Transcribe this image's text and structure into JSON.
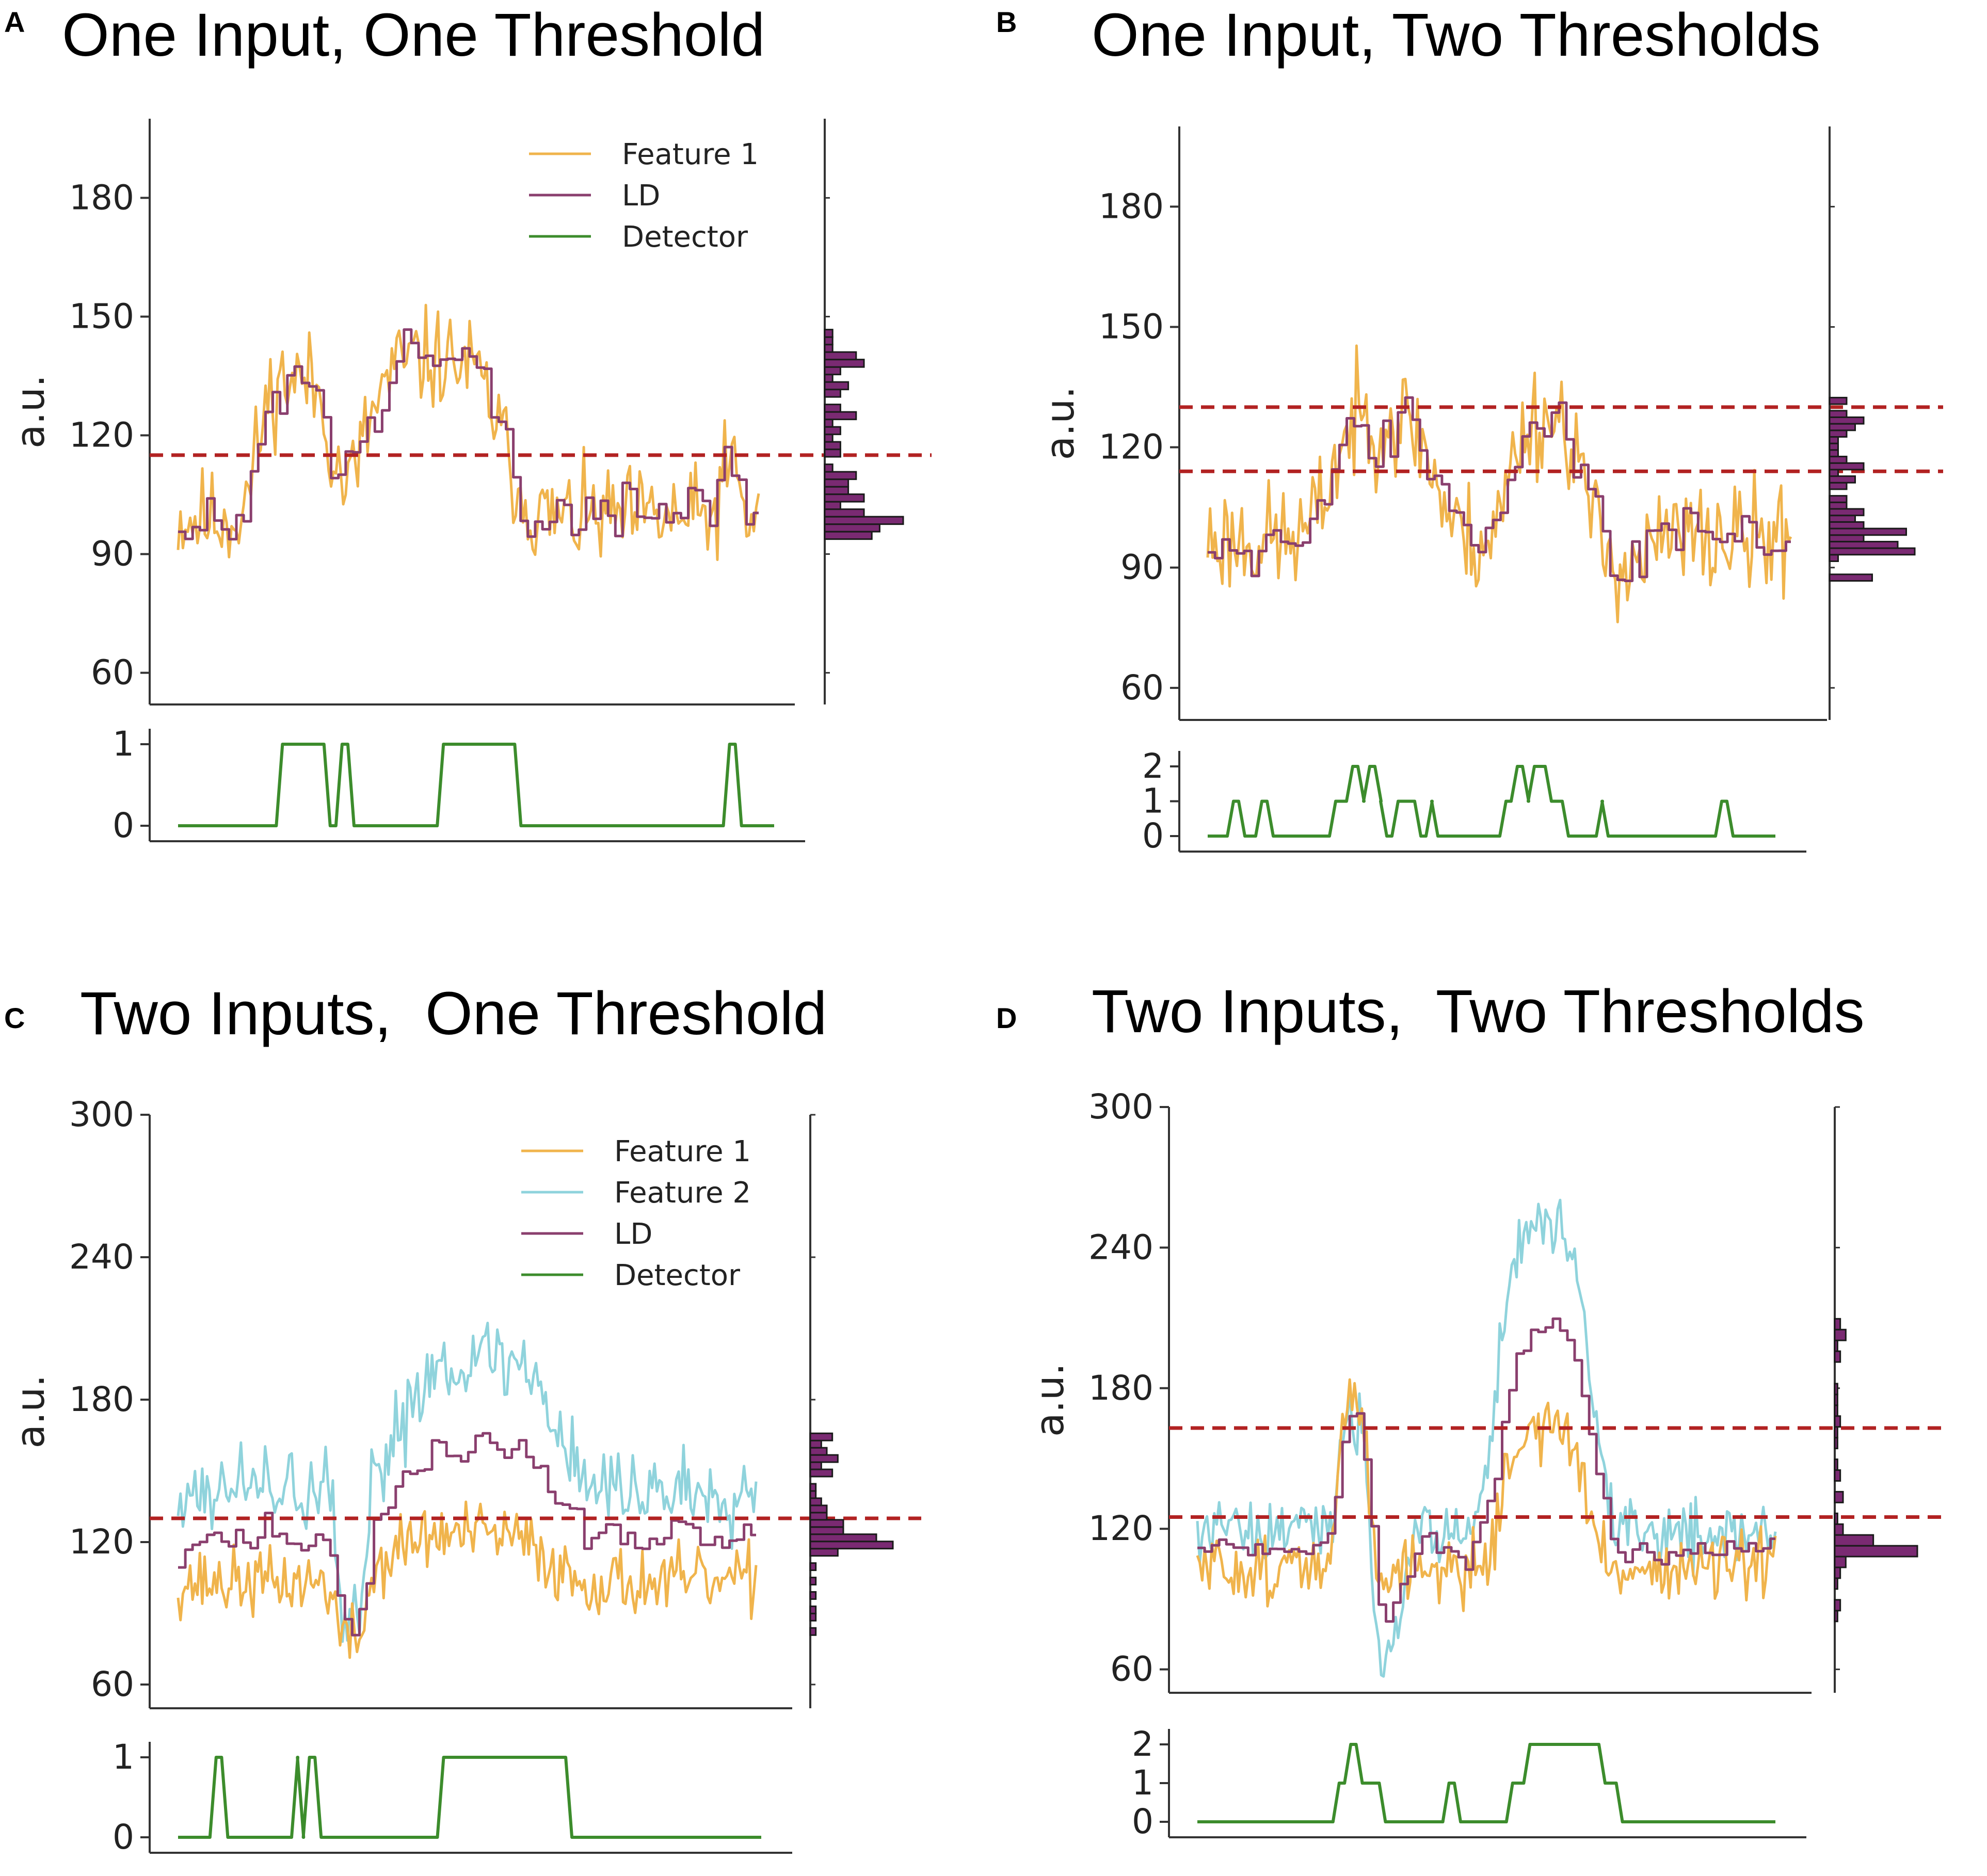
{
  "colors": {
    "feature1": "#f0b44c",
    "feature2": "#8fd3dc",
    "ld": "#8a3f6e",
    "detector": "#3c8c2c",
    "threshold": "#b22222",
    "hist_fill": "#7a2a72",
    "hist_edge": "#1a1a1a",
    "axis": "#333333"
  },
  "chart_data": [
    {
      "type": "line",
      "panel": "A",
      "title": "One Input, One Threshold",
      "ylabel": "a.u.",
      "yticks": [
        "60",
        "90",
        "120",
        "150",
        "180"
      ],
      "ylim": [
        52,
        200
      ],
      "legend": [
        "Feature 1",
        "LD",
        "Detector"
      ],
      "thresholds": [
        115
      ],
      "detector_ylim": [
        0,
        1
      ],
      "detector_ticks": [
        "0",
        "1"
      ],
      "seed": 11,
      "base": 99,
      "noise": 9,
      "bumps": [
        {
          "x": 0.2,
          "w": 0.07,
          "h": 35
        },
        {
          "x": 0.44,
          "w": 0.13,
          "h": 40
        },
        {
          "x": 0.95,
          "w": 0.02,
          "h": 12
        }
      ],
      "detector_steps": [
        [
          0,
          0
        ],
        [
          0.17,
          1
        ],
        [
          0.25,
          0
        ],
        [
          0.27,
          1
        ],
        [
          0.29,
          0
        ],
        [
          0.44,
          1
        ],
        [
          0.57,
          0
        ],
        [
          0.92,
          1
        ],
        [
          0.94,
          0
        ]
      ]
    },
    {
      "type": "line",
      "panel": "B",
      "title": "One Input, Two Thresholds",
      "ylabel": "a.u.",
      "yticks": [
        "60",
        "90",
        "120",
        "150",
        "180"
      ],
      "ylim": [
        52,
        200
      ],
      "legend": [],
      "thresholds": [
        130,
        114
      ],
      "detector_ylim": [
        0,
        2
      ],
      "detector_ticks": [
        "0",
        "1",
        "2"
      ],
      "seed": 23,
      "base": 97,
      "noise": 10,
      "bumps": [
        {
          "x": 0.3,
          "w": 0.1,
          "h": 30
        },
        {
          "x": 0.58,
          "w": 0.07,
          "h": 30
        },
        {
          "x": 0.72,
          "w": 0.05,
          "h": -5
        }
      ],
      "detector_steps": [
        [
          0,
          0
        ],
        [
          0.04,
          1
        ],
        [
          0.06,
          0
        ],
        [
          0.09,
          1
        ],
        [
          0.11,
          0
        ],
        [
          0.22,
          1
        ],
        [
          0.25,
          2
        ],
        [
          0.27,
          1
        ],
        [
          0.28,
          2
        ],
        [
          0.3,
          1
        ],
        [
          0.31,
          0
        ],
        [
          0.33,
          1
        ],
        [
          0.37,
          0
        ],
        [
          0.39,
          1
        ],
        [
          0.4,
          0
        ],
        [
          0.52,
          1
        ],
        [
          0.54,
          2
        ],
        [
          0.56,
          1
        ],
        [
          0.57,
          2
        ],
        [
          0.6,
          1
        ],
        [
          0.63,
          0
        ],
        [
          0.69,
          1
        ],
        [
          0.7,
          0
        ],
        [
          0.9,
          1
        ],
        [
          0.92,
          0
        ]
      ]
    },
    {
      "type": "line",
      "panel": "C",
      "title": "Two Inputs,  One Threshold",
      "ylabel": "a.u.",
      "yticks": [
        "60",
        "120",
        "180",
        "240",
        "300"
      ],
      "ylim": [
        50,
        300
      ],
      "legend": [
        "Feature 1",
        "Feature 2",
        "LD",
        "Detector"
      ],
      "thresholds": [
        130
      ],
      "detector_ylim": [
        0,
        1
      ],
      "detector_ticks": [
        "0",
        "1"
      ],
      "seed": 37,
      "base": 103,
      "base2": 142,
      "noise": 10,
      "noise2": 13,
      "bumps": [
        {
          "x": 0.3,
          "w": 0.03,
          "h": -25
        },
        {
          "x": 0.5,
          "w": 0.15,
          "h": 20
        }
      ],
      "bumps2": [
        {
          "x": 0.3,
          "w": 0.03,
          "h": -60
        },
        {
          "x": 0.52,
          "w": 0.15,
          "h": 55
        }
      ],
      "detector_steps": [
        [
          0,
          0
        ],
        [
          0.06,
          1
        ],
        [
          0.08,
          0
        ],
        [
          0.2,
          1
        ],
        [
          0.21,
          0
        ],
        [
          0.22,
          1
        ],
        [
          0.24,
          0
        ],
        [
          0.45,
          1
        ],
        [
          0.67,
          0
        ]
      ]
    },
    {
      "type": "line",
      "panel": "D",
      "title": "Two Inputs,  Two Thresholds",
      "ylabel": "a.u.",
      "yticks": [
        "60",
        "120",
        "180",
        "240",
        "300"
      ],
      "ylim": [
        50,
        300
      ],
      "legend": [],
      "thresholds": [
        163,
        125
      ],
      "detector_ylim": [
        0,
        2
      ],
      "detector_ticks": [
        "0",
        "1",
        "2"
      ],
      "seed": 51,
      "base": 103,
      "base2": 118,
      "noise": 10,
      "noise2": 10,
      "bumps": [
        {
          "x": 0.27,
          "w": 0.03,
          "h": 70
        },
        {
          "x": 0.6,
          "w": 0.08,
          "h": 60
        }
      ],
      "bumps2": [
        {
          "x": 0.27,
          "w": 0.03,
          "h": 50
        },
        {
          "x": 0.33,
          "w": 0.03,
          "h": -50
        },
        {
          "x": 0.6,
          "w": 0.09,
          "h": 130
        }
      ],
      "detector_steps": [
        [
          0,
          0
        ],
        [
          0.24,
          1
        ],
        [
          0.26,
          2
        ],
        [
          0.28,
          1
        ],
        [
          0.32,
          0
        ],
        [
          0.43,
          1
        ],
        [
          0.45,
          0
        ],
        [
          0.54,
          1
        ],
        [
          0.57,
          2
        ],
        [
          0.7,
          1
        ],
        [
          0.73,
          0
        ]
      ]
    }
  ]
}
